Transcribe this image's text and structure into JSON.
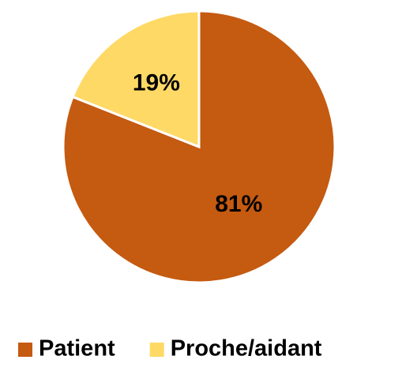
{
  "chart_data": {
    "type": "pie",
    "categories": [
      "Patient",
      "Proche/aidant"
    ],
    "values": [
      81,
      19
    ],
    "value_labels": [
      "81%",
      "19%"
    ],
    "colors": [
      "#C55A11",
      "#FFD966"
    ],
    "legend": "bottom"
  }
}
